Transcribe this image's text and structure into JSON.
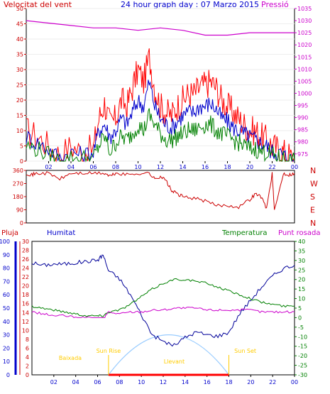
{
  "header": {
    "left_title": "Velocitat del vent",
    "center_title": "24 hour graph day : 07 Marzo 2015",
    "right_title": "Pressió"
  },
  "bottom_header": {
    "pluja": "Pluja",
    "humitat": "Humitat",
    "temperatura": "Temperatura",
    "punt_rosada": "Punt rosada"
  },
  "colors": {
    "wind_gust": "#ff0000",
    "wind_avg": "#0000cc",
    "wind_green": "#008000",
    "pressure": "#cc00cc",
    "direction": "#cc0000",
    "humidity": "#000099",
    "temperature": "#008000",
    "dewpoint": "#cc00cc",
    "rain": "#ff0000",
    "solar": "#99ccff",
    "title": "#0000cc",
    "axis_red": "#cc0000",
    "axis_blue": "#0000cc",
    "axis_green": "#008000",
    "axis_magenta": "#cc00cc",
    "annot": "#ffcc00"
  },
  "chart_data": [
    {
      "type": "line",
      "title": "24 hour graph day : 07 Marzo 2015",
      "x_ticks": [
        "02",
        "04",
        "06",
        "08",
        "10",
        "12",
        "14",
        "16",
        "18",
        "20",
        "22",
        "00"
      ],
      "y_left_label": "Velocitat del vent",
      "y_left_ticks": [
        "0",
        "5",
        "10",
        "15",
        "20",
        "25",
        "30",
        "35",
        "40",
        "45",
        "50"
      ],
      "ylim_left": [
        0,
        50
      ],
      "y_right_label": "Pressió",
      "y_right_ticks": [
        "975",
        "980",
        "985",
        "990",
        "995",
        "1000",
        "1005",
        "1010",
        "1015",
        "1020",
        "1025",
        "1030",
        "1035"
      ],
      "ylim_right": [
        972,
        1035
      ],
      "series": [
        {
          "x": [
            0,
            1,
            2,
            3,
            4,
            5,
            6,
            6.5,
            7,
            7.5,
            8,
            8.5,
            9,
            9.5,
            10,
            10.5,
            11,
            11.5,
            12,
            12.5,
            13,
            13.5,
            14,
            14.5,
            15,
            15.5,
            16,
            16.5,
            17,
            17.5,
            18,
            18.5,
            19,
            19.5,
            20,
            20.5,
            21,
            21.5,
            22,
            22.5,
            23,
            23.5,
            24
          ],
          "y": [
            10,
            8,
            5,
            2,
            5,
            3,
            4,
            14,
            19,
            12,
            14,
            20,
            18,
            24,
            30,
            26,
            34,
            24,
            18,
            16,
            15,
            18,
            20,
            22,
            22,
            24,
            25,
            26,
            24,
            20,
            18,
            16,
            14,
            12,
            10,
            10,
            8,
            7,
            5,
            4,
            3,
            2,
            0
          ]
        },
        {
          "x": [
            0,
            1,
            2,
            3,
            4,
            5,
            6,
            6.5,
            7,
            7.5,
            8,
            8.5,
            9,
            9.5,
            10,
            10.5,
            11,
            11.5,
            12,
            12.5,
            13,
            13.5,
            14,
            14.5,
            15,
            15.5,
            16,
            16.5,
            17,
            17.5,
            18,
            18.5,
            19,
            19.5,
            20,
            20.5,
            21,
            21.5,
            22,
            22.5,
            23,
            23.5,
            24
          ],
          "y": [
            8,
            6,
            4,
            1,
            3,
            2,
            3,
            10,
            12,
            8,
            10,
            14,
            12,
            16,
            20,
            18,
            26,
            18,
            14,
            12,
            11,
            13,
            15,
            16,
            16,
            18,
            18,
            19,
            17,
            14,
            13,
            11,
            10,
            9,
            8,
            7,
            6,
            5,
            3,
            3,
            2,
            1,
            0
          ]
        },
        {
          "x": [
            0,
            1,
            2,
            3,
            4,
            5,
            6,
            6.5,
            7,
            7.5,
            8,
            8.5,
            9,
            9.5,
            10,
            10.5,
            11,
            11.5,
            12,
            12.5,
            13,
            13.5,
            14,
            14.5,
            15,
            15.5,
            16,
            16.5,
            17,
            17.5,
            18,
            18.5,
            19,
            19.5,
            20,
            20.5,
            21,
            21.5,
            22,
            22.5,
            23,
            23.5,
            24
          ],
          "y": [
            5,
            4,
            2,
            0,
            1,
            1,
            1,
            5,
            8,
            3,
            6,
            8,
            7,
            9,
            12,
            10,
            15,
            12,
            9,
            7,
            7,
            8,
            9,
            10,
            10,
            11,
            12,
            12,
            10,
            9,
            8,
            7,
            6,
            5,
            4,
            4,
            3,
            3,
            2,
            1,
            1,
            0,
            0
          ]
        },
        {
          "x": [
            0,
            2,
            4,
            6,
            8,
            10,
            12,
            14,
            16,
            18,
            20,
            22,
            24
          ],
          "y": [
            1030,
            1029,
            1028,
            1027,
            1027,
            1026,
            1027,
            1026,
            1024,
            1024,
            1025,
            1025,
            1025
          ]
        }
      ]
    },
    {
      "type": "line",
      "title": "",
      "y_left_ticks": [
        "360",
        "270",
        "180",
        "90",
        "0"
      ],
      "ylim_left": [
        0,
        360
      ],
      "y_right_ticks": [
        "N",
        "W",
        "S",
        "E",
        "N"
      ],
      "series": [
        {
          "x": [
            0,
            0.5,
            1,
            2,
            3,
            4,
            5,
            6,
            7,
            7.5,
            8,
            9,
            10,
            11,
            11.5,
            12,
            12.5,
            13,
            13.5,
            14,
            15,
            16,
            17,
            18,
            19,
            20,
            20.5,
            21,
            21.5,
            22,
            22.2,
            23,
            23.5,
            24
          ],
          "y": [
            340,
            330,
            340,
            340,
            300,
            340,
            340,
            340,
            340,
            320,
            340,
            330,
            340,
            340,
            300,
            320,
            290,
            220,
            200,
            180,
            170,
            150,
            120,
            120,
            110,
            160,
            200,
            180,
            100,
            340,
            80,
            340,
            330,
            340
          ]
        }
      ]
    },
    {
      "type": "line",
      "title": "",
      "y_left_labels": [
        "Pluja",
        "Humitat"
      ],
      "y_left_ticks_humidity": [
        "0",
        "10",
        "20",
        "30",
        "40",
        "50",
        "60",
        "70",
        "80",
        "90",
        "100"
      ],
      "y_left_ticks_rain": [
        "0",
        "2",
        "4",
        "6",
        "8",
        "10",
        "12",
        "14",
        "16",
        "18",
        "20",
        "22",
        "24",
        "26",
        "28",
        "30"
      ],
      "y_right_label": "Temperatura",
      "y_right_ticks": [
        "40",
        "35",
        "30",
        "25",
        "20",
        "15",
        "10",
        "5",
        "0",
        "-5",
        "-10",
        "-15",
        "-20",
        "-25",
        "-30"
      ],
      "ylim_right": [
        -30,
        40
      ],
      "series": [
        {
          "name": "Humitat",
          "x": [
            0,
            1,
            2,
            3,
            4,
            5,
            6,
            6.5,
            7,
            8,
            9,
            10,
            11,
            12,
            13,
            14,
            15,
            16,
            17,
            18,
            19,
            20,
            21,
            22,
            23,
            24
          ],
          "y": [
            84,
            82,
            83,
            83,
            84,
            85,
            86,
            90,
            78,
            72,
            60,
            45,
            30,
            25,
            22,
            28,
            32,
            30,
            29,
            32,
            46,
            56,
            66,
            74,
            80,
            82
          ]
        },
        {
          "name": "Temperatura",
          "x": [
            0,
            1,
            2,
            3,
            4,
            5,
            6,
            6.5,
            7,
            8,
            9,
            10,
            11,
            12,
            13,
            14,
            15,
            16,
            17,
            18,
            19,
            20,
            21,
            22,
            23,
            24
          ],
          "y": [
            6,
            5,
            4,
            3,
            2,
            1,
            1,
            1,
            3,
            4,
            7,
            11,
            15,
            18,
            20,
            20,
            19,
            18,
            16,
            14,
            12,
            10,
            8,
            7,
            6,
            6
          ]
        },
        {
          "name": "Punt rosada",
          "x": [
            0,
            1,
            2,
            3,
            4,
            5,
            6,
            6.5,
            7,
            8,
            9,
            10,
            11,
            12,
            13,
            14,
            15,
            16,
            17,
            18,
            19,
            20,
            21,
            22,
            23,
            24
          ],
          "y": [
            3,
            2,
            1,
            1,
            0,
            0,
            -1,
            -1,
            3,
            2,
            3,
            3,
            4,
            4,
            5,
            5,
            5,
            4,
            4,
            4,
            4,
            4,
            3,
            3,
            3,
            3
          ]
        }
      ],
      "annotations": [
        "Baixada",
        "Sun Rise",
        "Llevant",
        "Sun Set"
      ],
      "x_ticks": [
        "02",
        "04",
        "06",
        "08",
        "10",
        "12",
        "14",
        "16",
        "18",
        "20",
        "22",
        "00"
      ]
    }
  ]
}
